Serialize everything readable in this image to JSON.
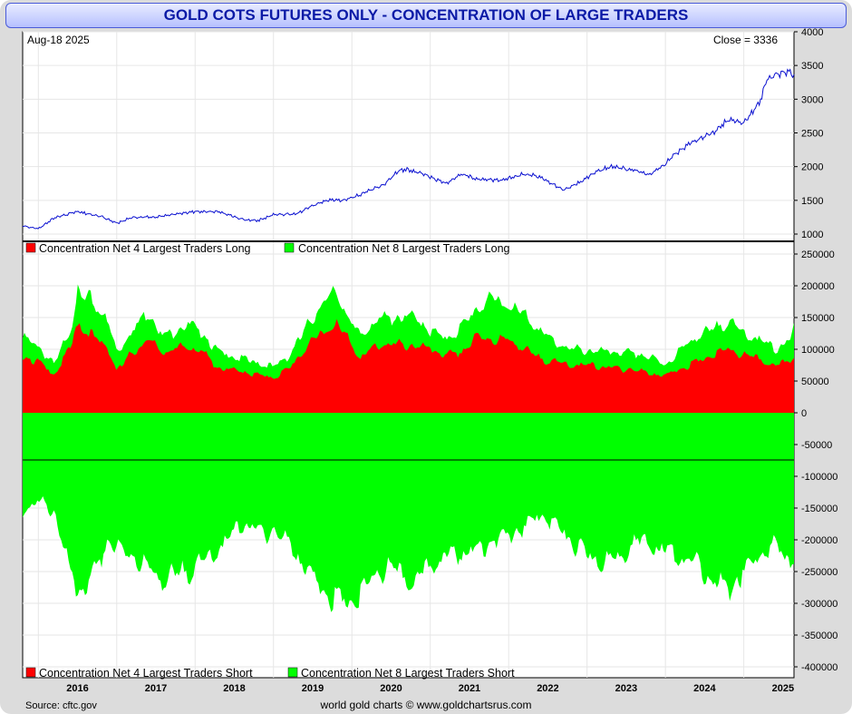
{
  "chart_data": [
    {
      "type": "line",
      "title": "GOLD COTS FUTURES ONLY - CONCENTRATION OF LARGE TRADERS",
      "date_label": "Aug-18  2025",
      "close_label": "Close = 3336",
      "series": [
        {
          "name": "Gold price",
          "color": "#0a10d0",
          "x": [
            2015.8,
            2016.0,
            2016.2,
            2016.5,
            2016.8,
            2017.0,
            2017.2,
            2017.5,
            2017.7,
            2018.0,
            2018.3,
            2018.6,
            2018.8,
            2019.0,
            2019.3,
            2019.5,
            2019.7,
            2019.9,
            2020.1,
            2020.2,
            2020.4,
            2020.6,
            2020.7,
            2020.9,
            2021.2,
            2021.4,
            2021.6,
            2021.9,
            2022.2,
            2022.4,
            2022.7,
            2022.9,
            2023.1,
            2023.3,
            2023.6,
            2023.8,
            2024.0,
            2024.1,
            2024.3,
            2024.6,
            2024.8,
            2025.0,
            2025.2,
            2025.3,
            2025.45,
            2025.6,
            2025.64
          ],
          "values": [
            1120,
            1080,
            1240,
            1330,
            1260,
            1160,
            1250,
            1250,
            1290,
            1330,
            1330,
            1220,
            1200,
            1290,
            1300,
            1420,
            1500,
            1500,
            1580,
            1640,
            1730,
            1950,
            1960,
            1890,
            1750,
            1890,
            1810,
            1800,
            1890,
            1850,
            1650,
            1760,
            1920,
            2000,
            1950,
            1880,
            2040,
            2170,
            2330,
            2500,
            2700,
            2650,
            2950,
            3300,
            3380,
            3400,
            3336
          ]
        }
      ],
      "ylim": [
        1000,
        4000
      ],
      "y_ticks": [
        "1000",
        "1500",
        "2000",
        "2500",
        "3000",
        "3500",
        "4000"
      ]
    },
    {
      "type": "area",
      "ylim": [
        -400000,
        250000
      ],
      "y_ticks": [
        "-400000",
        "-350000",
        "-300000",
        "-250000",
        "-200000",
        "-150000",
        "-100000",
        "-50000",
        "0",
        "50000",
        "100000",
        "150000",
        "200000",
        "250000"
      ],
      "legend_top": [
        {
          "name": "Concentration Net 4 Largest Traders Long",
          "color": "#ff0000"
        },
        {
          "name": "Concentration Net 8 Largest Traders Long",
          "color": "#00ff00"
        }
      ],
      "legend_bottom": [
        {
          "name": "Concentration Net 4 Largest Traders Short",
          "color": "#ff0000"
        },
        {
          "name": "Concentration Net 8 Largest Traders Short",
          "color": "#00ff00"
        }
      ],
      "x": [
        2015.8,
        2016.0,
        2016.2,
        2016.4,
        2016.5,
        2016.7,
        2016.9,
        2017.0,
        2017.2,
        2017.4,
        2017.6,
        2017.9,
        2018.1,
        2018.3,
        2018.6,
        2018.9,
        2019.0,
        2019.2,
        2019.4,
        2019.6,
        2019.8,
        2020.0,
        2020.1,
        2020.3,
        2020.5,
        2020.8,
        2021.0,
        2021.2,
        2021.4,
        2021.6,
        2021.8,
        2022.0,
        2022.2,
        2022.4,
        2022.6,
        2022.8,
        2023.0,
        2023.2,
        2023.4,
        2023.6,
        2023.8,
        2024.0,
        2024.2,
        2024.4,
        2024.6,
        2024.8,
        2025.0,
        2025.2,
        2025.4,
        2025.6,
        2025.64
      ],
      "series": [
        {
          "name": "Concentration Net 8 Largest Traders Long",
          "color": "#00ff00",
          "values": [
            118000,
            105000,
            75000,
            130000,
            185000,
            175000,
            140000,
            95000,
            130000,
            160000,
            120000,
            140000,
            125000,
            95000,
            85000,
            75000,
            72000,
            90000,
            130000,
            170000,
            190000,
            140000,
            120000,
            145000,
            150000,
            150000,
            130000,
            115000,
            135000,
            165000,
            180000,
            170000,
            155000,
            130000,
            110000,
            100000,
            98000,
            96000,
            95000,
            93000,
            88000,
            75000,
            100000,
            120000,
            130000,
            145000,
            125000,
            115000,
            100000,
            115000,
            135000
          ]
        },
        {
          "name": "Concentration Net 4 Largest Traders Long",
          "color": "#ff0000",
          "values": [
            90000,
            80000,
            60000,
            100000,
            140000,
            120000,
            100000,
            65000,
            95000,
            115000,
            95000,
            105000,
            95000,
            70000,
            65000,
            57000,
            55000,
            70000,
            100000,
            125000,
            140000,
            110000,
            85000,
            105000,
            108000,
            105000,
            100000,
            90000,
            95000,
            120000,
            115000,
            115000,
            100000,
            85000,
            80000,
            75000,
            75000,
            72000,
            70000,
            68000,
            62000,
            58000,
            70000,
            80000,
            90000,
            100000,
            90000,
            85000,
            72000,
            85000,
            90000
          ]
        },
        {
          "name": "Concentration Net 4 Largest Traders Short",
          "color": "#ff0000",
          "values": [
            -130000,
            -105000,
            -110000,
            -200000,
            -210000,
            -150000,
            -130000,
            -145000,
            -150000,
            -170000,
            -190000,
            -175000,
            -160000,
            -150000,
            -110000,
            -125000,
            -125000,
            -140000,
            -175000,
            -185000,
            -195000,
            -185000,
            -170000,
            -150000,
            -160000,
            -170000,
            -160000,
            -155000,
            -150000,
            -145000,
            -125000,
            -120000,
            -110000,
            -100000,
            -110000,
            -130000,
            -160000,
            -170000,
            -165000,
            -140000,
            -150000,
            -160000,
            -180000,
            -190000,
            -205000,
            -195000,
            -170000,
            -150000,
            -160000,
            -170000,
            -150000
          ]
        },
        {
          "name": "Concentration Net 8 Largest Traders Short",
          "color": "#00ff00",
          "values": [
            -155000,
            -140000,
            -155000,
            -250000,
            -285000,
            -260000,
            -200000,
            -215000,
            -225000,
            -245000,
            -265000,
            -250000,
            -235000,
            -215000,
            -175000,
            -190000,
            -185000,
            -205000,
            -245000,
            -275000,
            -295000,
            -300000,
            -290000,
            -255000,
            -245000,
            -270000,
            -240000,
            -225000,
            -220000,
            -215000,
            -200000,
            -195000,
            -180000,
            -160000,
            -175000,
            -205000,
            -225000,
            -235000,
            -230000,
            -200000,
            -210000,
            -215000,
            -230000,
            -240000,
            -265000,
            -280000,
            -250000,
            -225000,
            -210000,
            -235000,
            -220000
          ]
        }
      ]
    }
  ],
  "x_axis": {
    "ticks": [
      "2016",
      "2017",
      "2018",
      "2019",
      "2020",
      "2021",
      "2022",
      "2023",
      "2024",
      "2025"
    ],
    "range": [
      2015.8,
      2025.64
    ]
  },
  "footer": {
    "source": "Source: cftc.gov",
    "credit": "world gold charts © www.goldchartsrus.com"
  }
}
